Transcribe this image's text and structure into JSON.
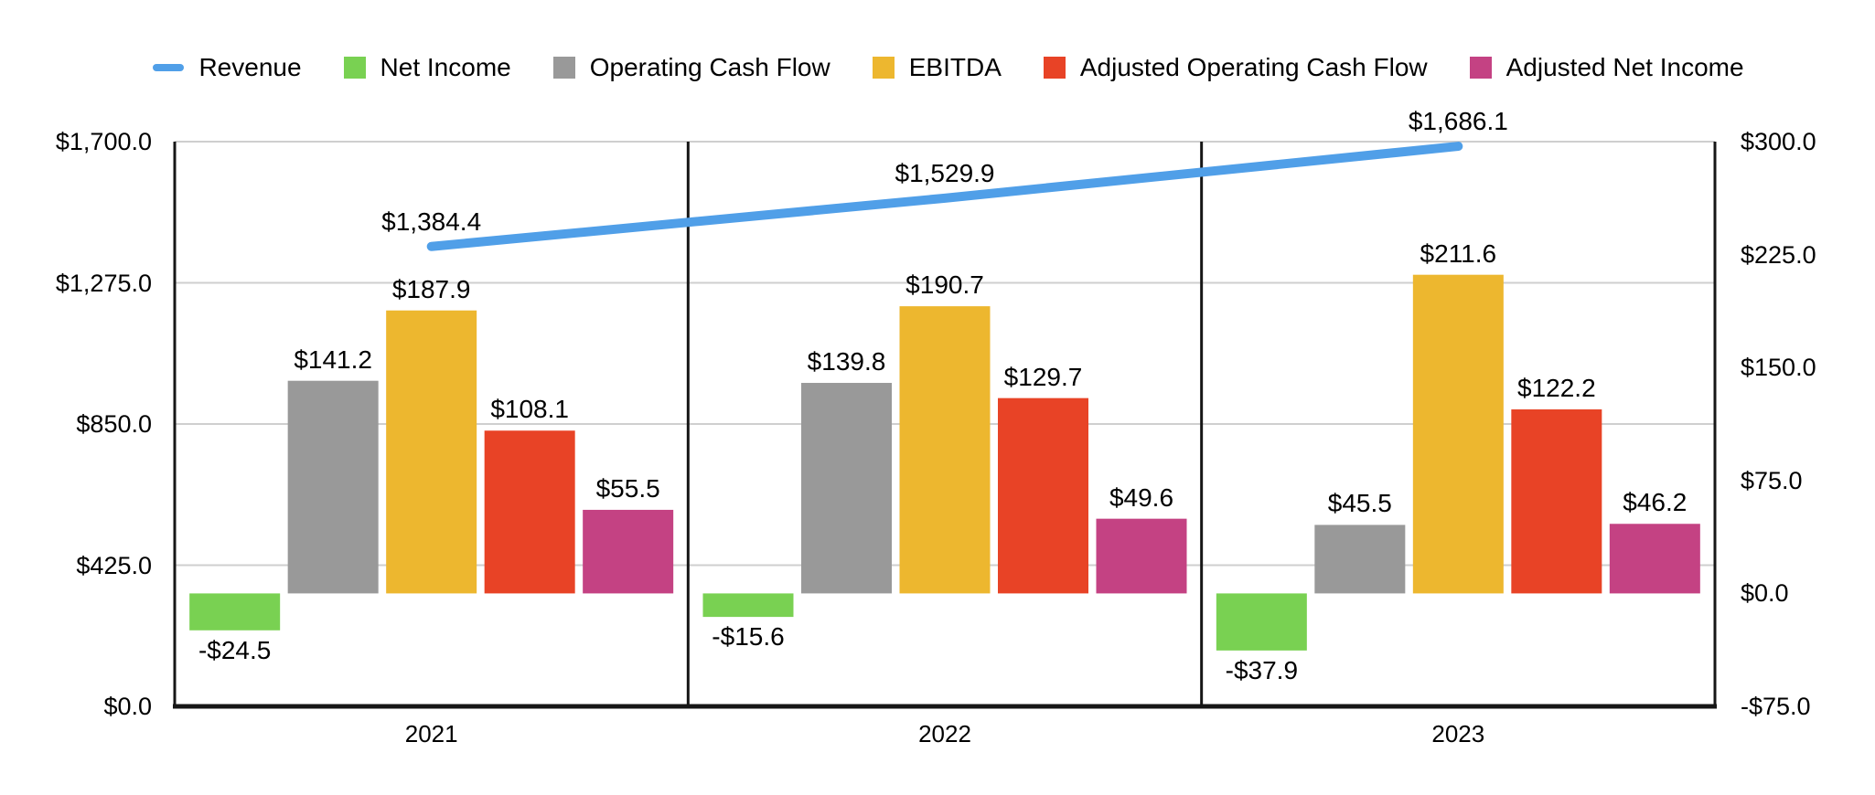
{
  "legend": {
    "items": [
      {
        "label": "Revenue",
        "color": "#509FE8",
        "swatch": "line"
      },
      {
        "label": "Net Income",
        "color": "#79D152",
        "swatch": "square"
      },
      {
        "label": "Operating Cash Flow",
        "color": "#999999",
        "swatch": "square"
      },
      {
        "label": "EBITDA",
        "color": "#EDB72F",
        "swatch": "square"
      },
      {
        "label": "Adjusted Operating Cash Flow",
        "color": "#E84326",
        "swatch": "square"
      },
      {
        "label": "Adjusted Net Income",
        "color": "#C44283",
        "swatch": "square"
      }
    ]
  },
  "chart_data": {
    "type": "combo",
    "title": "",
    "categories": [
      "2021",
      "2022",
      "2023"
    ],
    "series": [
      {
        "name": "Revenue",
        "type": "line",
        "axis": "left",
        "color": "#509FE8",
        "values": [
          1384.4,
          1529.9,
          1686.1
        ],
        "labels": [
          "$1,384.4",
          "$1,529.9",
          "$1,686.1"
        ]
      },
      {
        "name": "Net Income",
        "type": "bar",
        "axis": "right",
        "color": "#79D152",
        "values": [
          -24.5,
          -15.6,
          -37.9
        ],
        "labels": [
          "-$24.5",
          "-$15.6",
          "-$37.9"
        ]
      },
      {
        "name": "Operating Cash Flow",
        "type": "bar",
        "axis": "right",
        "color": "#999999",
        "values": [
          141.2,
          139.8,
          45.5
        ],
        "labels": [
          "$141.2",
          "$139.8",
          "$45.5"
        ]
      },
      {
        "name": "EBITDA",
        "type": "bar",
        "axis": "right",
        "color": "#EDB72F",
        "values": [
          187.9,
          190.7,
          211.6
        ],
        "labels": [
          "$187.9",
          "$190.7",
          "$211.6"
        ]
      },
      {
        "name": "Adjusted Operating Cash Flow",
        "type": "bar",
        "axis": "right",
        "color": "#E84326",
        "values": [
          108.1,
          129.7,
          122.2
        ],
        "labels": [
          "$108.1",
          "$129.7",
          "$122.2"
        ]
      },
      {
        "name": "Adjusted Net Income",
        "type": "bar",
        "axis": "right",
        "color": "#C44283",
        "values": [
          55.5,
          49.6,
          46.2
        ],
        "labels": [
          "$55.5",
          "$49.6",
          "$46.2"
        ]
      }
    ],
    "left_axis": {
      "min": 0,
      "max": 1700,
      "tick_values": [
        0,
        425,
        850,
        1275,
        1700
      ],
      "tick_labels": [
        "$0.0",
        "$425.0",
        "$850.0",
        "$1,275.0",
        "$1,700.0"
      ]
    },
    "right_axis": {
      "min": -75,
      "max": 300,
      "tick_values": [
        -75,
        0,
        75,
        150,
        225,
        300
      ],
      "tick_labels": [
        "-$75.0",
        "$0.0",
        "$75.0",
        "$150.0",
        "$225.0",
        "$300.0"
      ]
    },
    "grid": "horizontal gridlines at left-axis ticks",
    "legend_position": "top",
    "panel_separators": true,
    "colors": {
      "gridline": "#CFCFCF",
      "axis_border": "#161616",
      "text": "#000000",
      "background": "#FFFFFF"
    }
  }
}
